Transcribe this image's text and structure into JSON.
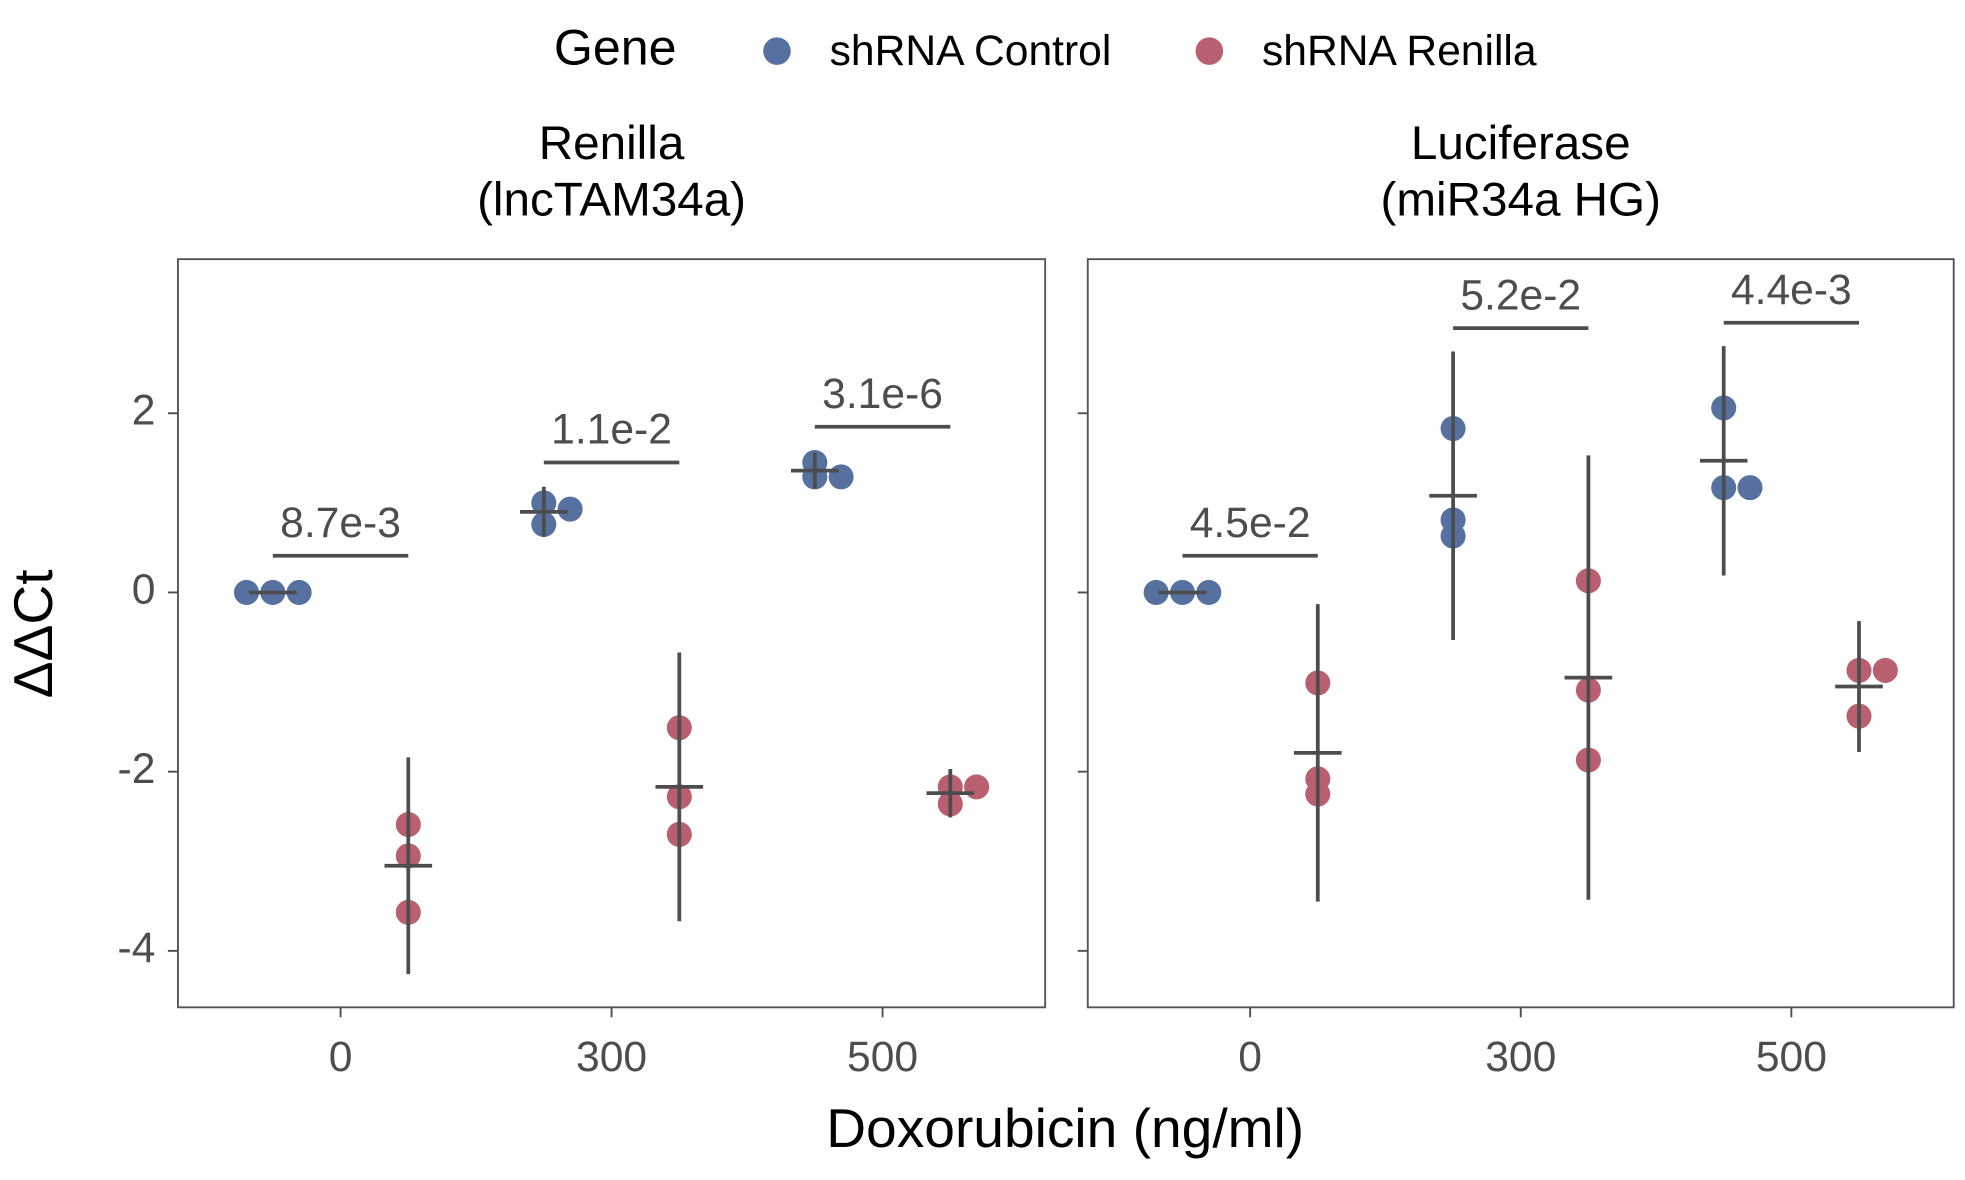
{
  "legend_title": "Gene",
  "x_label": "Doxorubicin (ng/ml)",
  "y_label": "ΔΔCt",
  "chart_data": [
    {
      "type": "scatter",
      "title": [
        "Renilla",
        "(lncTAM34a)"
      ],
      "categories": [
        "0",
        "300",
        "500"
      ],
      "ylim": [
        -4.63,
        3.72
      ],
      "yticks": [
        -4,
        -2,
        0,
        2
      ],
      "series": [
        {
          "name": "shRNA Control",
          "color": "#56709f",
          "values": [
            [
              0,
              0,
              0
            ],
            [
              1.0,
              0.93,
              0.76
            ],
            [
              1.45,
              1.29,
              1.29
            ]
          ],
          "means": [
            0,
            0.9,
            1.36
          ],
          "errors": [
            0,
            0.28,
            0.2
          ]
        },
        {
          "name": "shRNA Renilla",
          "color": "#b8606f",
          "values": [
            [
              -2.59,
              -2.94,
              -3.57
            ],
            [
              -1.51,
              -2.28,
              -2.7
            ],
            [
              -2.17,
              -2.17,
              -2.36
            ]
          ],
          "means": [
            -3.05,
            -2.17,
            -2.24
          ],
          "errors": [
            1.21,
            1.5,
            0.27
          ]
        }
      ],
      "p_values": [
        "8.7e-3",
        "1.1e-2",
        "3.1e-6"
      ],
      "p_value_y": [
        0.41,
        1.45,
        1.85
      ]
    },
    {
      "type": "scatter",
      "title": [
        "Luciferase",
        "(miR34a HG)"
      ],
      "categories": [
        "0",
        "300",
        "500"
      ],
      "ylim": [
        -4.63,
        3.72
      ],
      "yticks": [
        -4,
        -2,
        0,
        2
      ],
      "series": [
        {
          "color": "#56709f",
          "values": [
            [
              0,
              0,
              0
            ],
            [
              1.83,
              0.81,
              0.63
            ],
            [
              2.06,
              1.17,
              1.17
            ]
          ],
          "means": [
            0,
            1.08,
            1.47
          ],
          "errors": [
            0,
            1.61,
            1.28
          ]
        },
        {
          "color": "#b8606f",
          "values": [
            [
              -1.01,
              -2.08,
              -2.25
            ],
            [
              0.13,
              -1.09,
              -1.87
            ],
            [
              -0.87,
              -0.87,
              -1.38
            ]
          ],
          "means": [
            -1.79,
            -0.95,
            -1.05
          ],
          "errors": [
            1.66,
            2.48,
            0.73
          ]
        }
      ],
      "p_values": [
        "4.5e-2",
        "5.2e-2",
        "4.4e-3"
      ],
      "p_value_y": [
        0.41,
        2.95,
        3.01
      ]
    }
  ]
}
